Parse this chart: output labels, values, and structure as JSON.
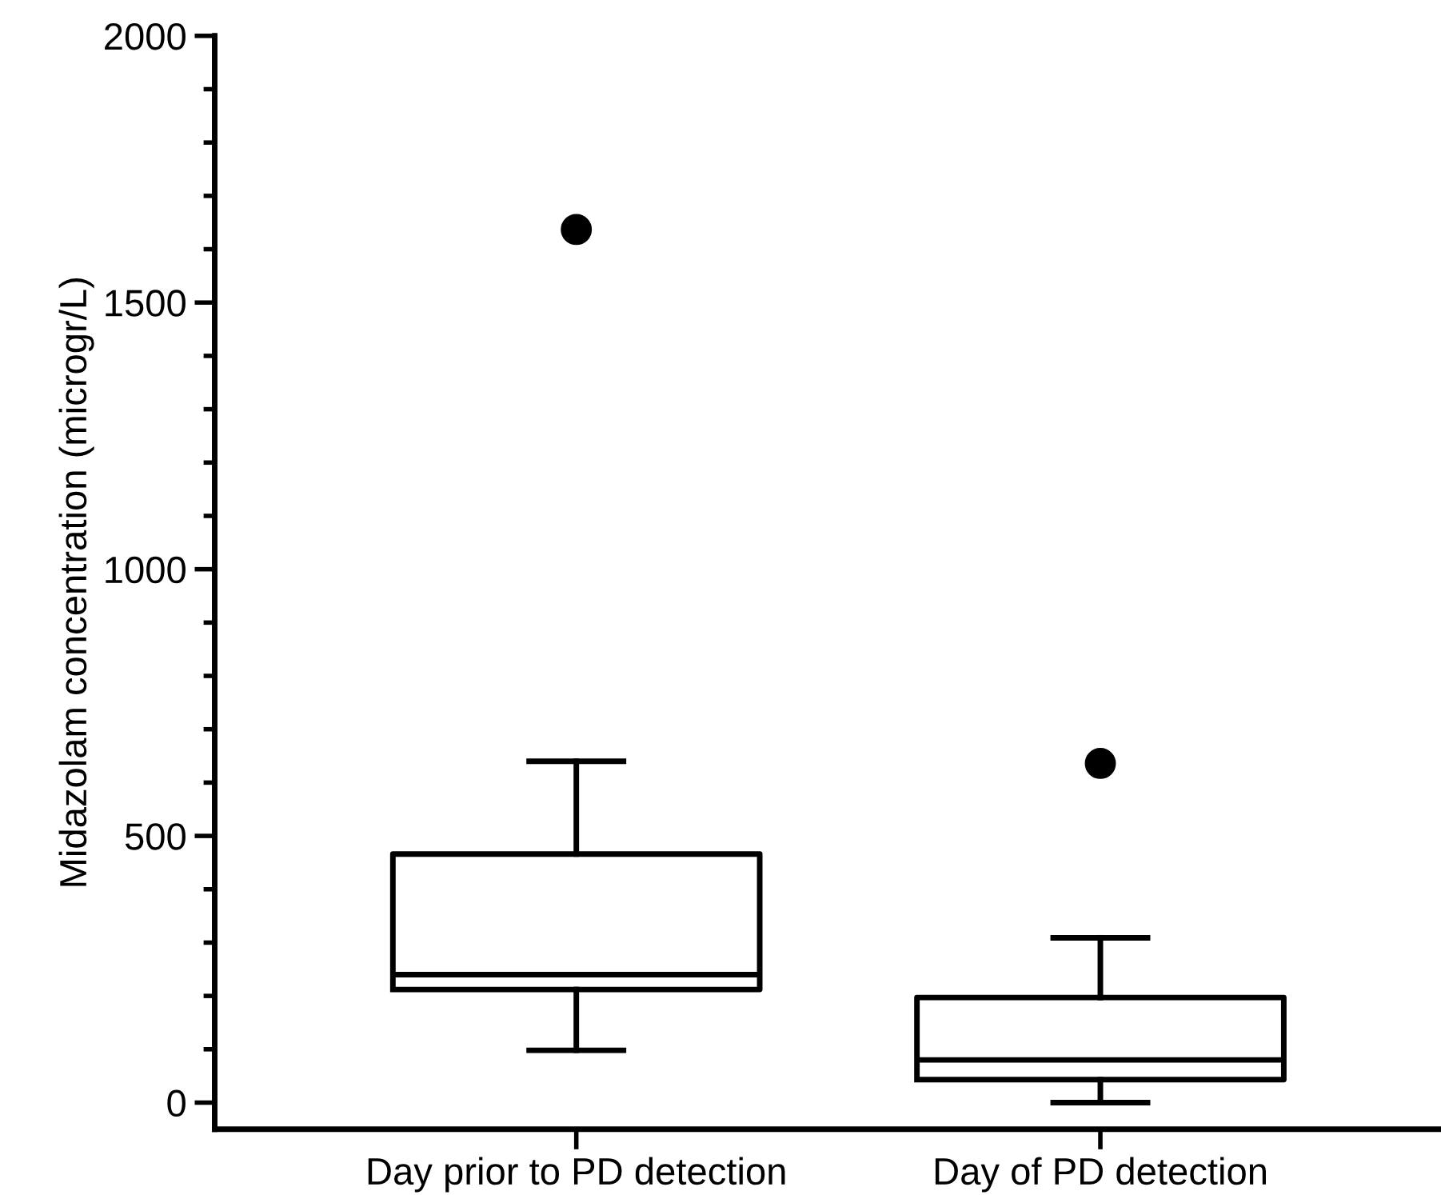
{
  "chart_data": {
    "type": "box",
    "ylabel": "Midazolam concentration (microgr/L)",
    "categories": [
      "Day prior to PD detection",
      "Day of PD detection"
    ],
    "boxes": [
      {
        "low": 98,
        "q1": 212,
        "median": 240,
        "q3": 466,
        "high": 640,
        "outliers": [
          1637
        ]
      },
      {
        "low": 0,
        "q1": 43,
        "median": 80,
        "q3": 197,
        "high": 309,
        "outliers": [
          636
        ]
      }
    ],
    "ylim": [
      -50,
      2000
    ],
    "yticks": [
      0,
      500,
      1000,
      1500,
      2000
    ],
    "grid": false,
    "legend": false
  }
}
